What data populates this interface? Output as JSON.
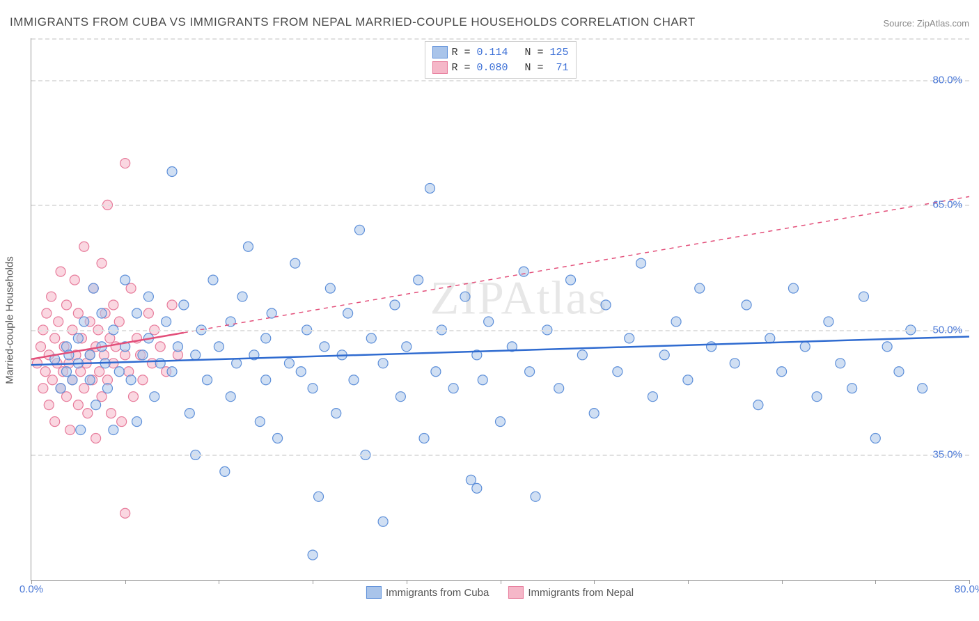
{
  "title": "IMMIGRANTS FROM CUBA VS IMMIGRANTS FROM NEPAL MARRIED-COUPLE HOUSEHOLDS CORRELATION CHART",
  "source": "Source: ZipAtlas.com",
  "watermark": "ZIPAtlas",
  "chart": {
    "type": "scatter",
    "xlim": [
      0,
      80
    ],
    "ylim": [
      20,
      85
    ],
    "xtick_labels": {
      "0": "0.0%",
      "80": "80.0%"
    },
    "ytick_positions": [
      35,
      50,
      65,
      80
    ],
    "ytick_labels": {
      "35": "35.0%",
      "50": "50.0%",
      "65": "65.0%",
      "80": "80.0%"
    },
    "xminor_tick_step": 8,
    "ylabel": "Married-couple Households",
    "background_color": "#ffffff",
    "grid_color": "#e0e0e0",
    "marker_radius": 7,
    "marker_opacity": 0.55,
    "trend_line_width": 2.5,
    "trend_dash_width": 1.5
  },
  "series": {
    "cuba": {
      "label": "Immigrants from Cuba",
      "fill": "#a9c4ea",
      "stroke": "#5d8fd9",
      "line_color": "#2f6bd0",
      "R": "0.114",
      "N": "125",
      "trend": {
        "x1": 0,
        "y1": 45.8,
        "x2": 80,
        "y2": 49.2,
        "solid_until_x": 80
      },
      "points": [
        [
          2,
          46.5
        ],
        [
          2.5,
          43
        ],
        [
          3,
          48
        ],
        [
          3,
          45
        ],
        [
          3.2,
          47
        ],
        [
          3.5,
          44
        ],
        [
          4,
          49
        ],
        [
          4,
          46
        ],
        [
          4.2,
          38
        ],
        [
          4.5,
          51
        ],
        [
          5,
          47
        ],
        [
          5,
          44
        ],
        [
          5.3,
          55
        ],
        [
          5.5,
          41
        ],
        [
          6,
          48
        ],
        [
          6,
          52
        ],
        [
          6.3,
          46
        ],
        [
          6.5,
          43
        ],
        [
          7,
          50
        ],
        [
          7,
          38
        ],
        [
          7.5,
          45
        ],
        [
          8,
          56
        ],
        [
          8,
          48
        ],
        [
          8.5,
          44
        ],
        [
          9,
          52
        ],
        [
          9,
          39
        ],
        [
          9.5,
          47
        ],
        [
          10,
          49
        ],
        [
          10,
          54
        ],
        [
          10.5,
          42
        ],
        [
          11,
          46
        ],
        [
          11.5,
          51
        ],
        [
          12,
          45
        ],
        [
          12,
          69
        ],
        [
          12.5,
          48
        ],
        [
          13,
          53
        ],
        [
          13.5,
          40
        ],
        [
          14,
          47
        ],
        [
          14,
          35
        ],
        [
          14.5,
          50
        ],
        [
          15,
          44
        ],
        [
          15.5,
          56
        ],
        [
          16,
          48
        ],
        [
          16.5,
          33
        ],
        [
          17,
          51
        ],
        [
          17,
          42
        ],
        [
          17.5,
          46
        ],
        [
          18,
          54
        ],
        [
          18.5,
          60
        ],
        [
          19,
          47
        ],
        [
          19.5,
          39
        ],
        [
          20,
          49
        ],
        [
          20,
          44
        ],
        [
          20.5,
          52
        ],
        [
          21,
          37
        ],
        [
          22,
          46
        ],
        [
          22.5,
          58
        ],
        [
          23,
          45
        ],
        [
          23.5,
          50
        ],
        [
          24,
          43
        ],
        [
          24.5,
          30
        ],
        [
          25,
          48
        ],
        [
          25.5,
          55
        ],
        [
          26,
          40
        ],
        [
          26.5,
          47
        ],
        [
          27,
          52
        ],
        [
          27.5,
          44
        ],
        [
          28,
          62
        ],
        [
          28.5,
          35
        ],
        [
          29,
          49
        ],
        [
          30,
          46
        ],
        [
          30,
          27
        ],
        [
          31,
          53
        ],
        [
          31.5,
          42
        ],
        [
          32,
          48
        ],
        [
          33,
          56
        ],
        [
          33.5,
          37
        ],
        [
          34,
          67
        ],
        [
          34.5,
          45
        ],
        [
          35,
          50
        ],
        [
          36,
          43
        ],
        [
          37,
          54
        ],
        [
          37.5,
          32
        ],
        [
          38,
          47
        ],
        [
          38.5,
          44
        ],
        [
          39,
          51
        ],
        [
          40,
          39
        ],
        [
          41,
          48
        ],
        [
          42,
          57
        ],
        [
          42.5,
          45
        ],
        [
          43,
          30
        ],
        [
          44,
          50
        ],
        [
          45,
          43
        ],
        [
          46,
          56
        ],
        [
          47,
          47
        ],
        [
          48,
          40
        ],
        [
          49,
          53
        ],
        [
          50,
          45
        ],
        [
          51,
          49
        ],
        [
          52,
          58
        ],
        [
          53,
          42
        ],
        [
          54,
          47
        ],
        [
          55,
          51
        ],
        [
          56,
          44
        ],
        [
          57,
          55
        ],
        [
          58,
          48
        ],
        [
          60,
          46
        ],
        [
          61,
          53
        ],
        [
          62,
          41
        ],
        [
          63,
          49
        ],
        [
          64,
          45
        ],
        [
          65,
          55
        ],
        [
          66,
          48
        ],
        [
          67,
          42
        ],
        [
          68,
          51
        ],
        [
          69,
          46
        ],
        [
          70,
          43
        ],
        [
          71,
          54
        ],
        [
          72,
          37
        ],
        [
          73,
          48
        ],
        [
          74,
          45
        ],
        [
          75,
          50
        ],
        [
          76,
          43
        ],
        [
          24,
          23
        ],
        [
          38,
          31
        ]
      ]
    },
    "nepal": {
      "label": "Immigrants from Nepal",
      "fill": "#f5b7c8",
      "stroke": "#e77a9a",
      "line_color": "#e34f7a",
      "R": "0.080",
      "N": "71",
      "trend": {
        "x1": 0,
        "y1": 46.5,
        "x2": 80,
        "y2": 66,
        "solid_until_x": 13
      },
      "points": [
        [
          0.5,
          46
        ],
        [
          0.8,
          48
        ],
        [
          1,
          43
        ],
        [
          1,
          50
        ],
        [
          1.2,
          45
        ],
        [
          1.3,
          52
        ],
        [
          1.5,
          41
        ],
        [
          1.5,
          47
        ],
        [
          1.7,
          54
        ],
        [
          1.8,
          44
        ],
        [
          2,
          49
        ],
        [
          2,
          39
        ],
        [
          2.2,
          46
        ],
        [
          2.3,
          51
        ],
        [
          2.5,
          43
        ],
        [
          2.5,
          57
        ],
        [
          2.7,
          45
        ],
        [
          2.8,
          48
        ],
        [
          3,
          42
        ],
        [
          3,
          53
        ],
        [
          3.2,
          46
        ],
        [
          3.3,
          38
        ],
        [
          3.5,
          50
        ],
        [
          3.5,
          44
        ],
        [
          3.7,
          56
        ],
        [
          3.8,
          47
        ],
        [
          4,
          41
        ],
        [
          4,
          52
        ],
        [
          4.2,
          45
        ],
        [
          4.3,
          49
        ],
        [
          4.5,
          43
        ],
        [
          4.5,
          60
        ],
        [
          4.7,
          46
        ],
        [
          4.8,
          40
        ],
        [
          5,
          51
        ],
        [
          5,
          47
        ],
        [
          5.2,
          44
        ],
        [
          5.3,
          55
        ],
        [
          5.5,
          48
        ],
        [
          5.5,
          37
        ],
        [
          5.7,
          50
        ],
        [
          5.8,
          45
        ],
        [
          6,
          58
        ],
        [
          6,
          42
        ],
        [
          6.2,
          47
        ],
        [
          6.3,
          52
        ],
        [
          6.5,
          44
        ],
        [
          6.5,
          65
        ],
        [
          6.7,
          49
        ],
        [
          6.8,
          40
        ],
        [
          7,
          53
        ],
        [
          7,
          46
        ],
        [
          7.2,
          48
        ],
        [
          7.5,
          51
        ],
        [
          7.7,
          39
        ],
        [
          8,
          47
        ],
        [
          8,
          70
        ],
        [
          8.3,
          45
        ],
        [
          8.5,
          55
        ],
        [
          8.7,
          42
        ],
        [
          9,
          49
        ],
        [
          9.3,
          47
        ],
        [
          9.5,
          44
        ],
        [
          10,
          52
        ],
        [
          10.3,
          46
        ],
        [
          10.5,
          50
        ],
        [
          11,
          48
        ],
        [
          11.5,
          45
        ],
        [
          12,
          53
        ],
        [
          12.5,
          47
        ],
        [
          8,
          28
        ]
      ]
    }
  },
  "bottom_legend": [
    "cuba",
    "nepal"
  ]
}
